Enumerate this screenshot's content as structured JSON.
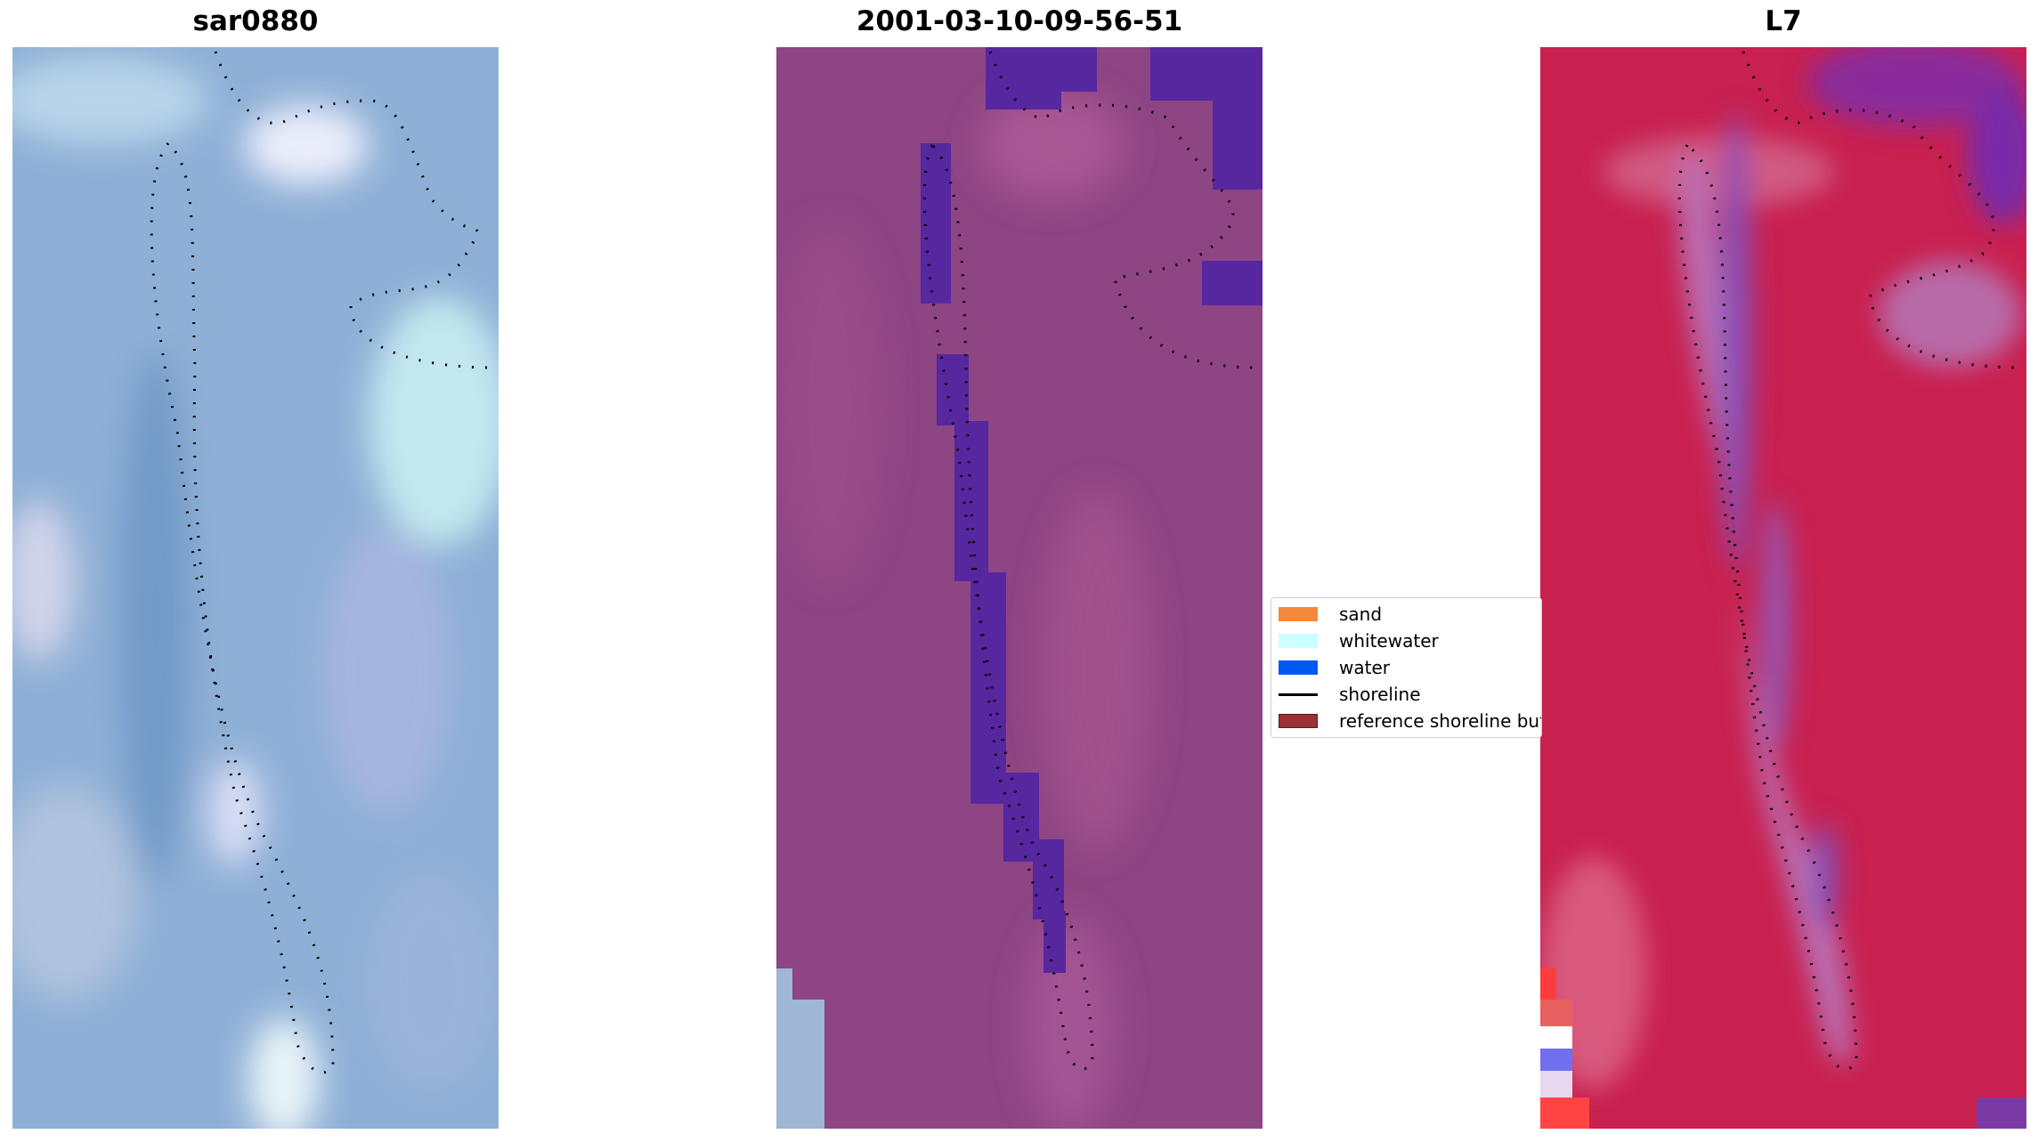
{
  "panels": [
    {
      "title": "sar0880"
    },
    {
      "title": "2001-03-10-09-56-51"
    },
    {
      "title": "L7"
    }
  ],
  "legend": {
    "items": [
      {
        "label": "sand",
        "color": "#f5883a"
      },
      {
        "label": "whitewater",
        "color": "#ccffff"
      },
      {
        "label": "water",
        "color": "#0059f0"
      },
      {
        "label": "shoreline",
        "color": "#000000"
      },
      {
        "label": "reference shoreline buffer",
        "color": "#9a3134"
      }
    ]
  },
  "colors": {
    "rgb_base": "#8fb0d6",
    "classified_base": "#8e4583",
    "classified_water": "#5727a0",
    "ndwi_base": "#c8204f",
    "shoreline_dots": "#000000"
  }
}
